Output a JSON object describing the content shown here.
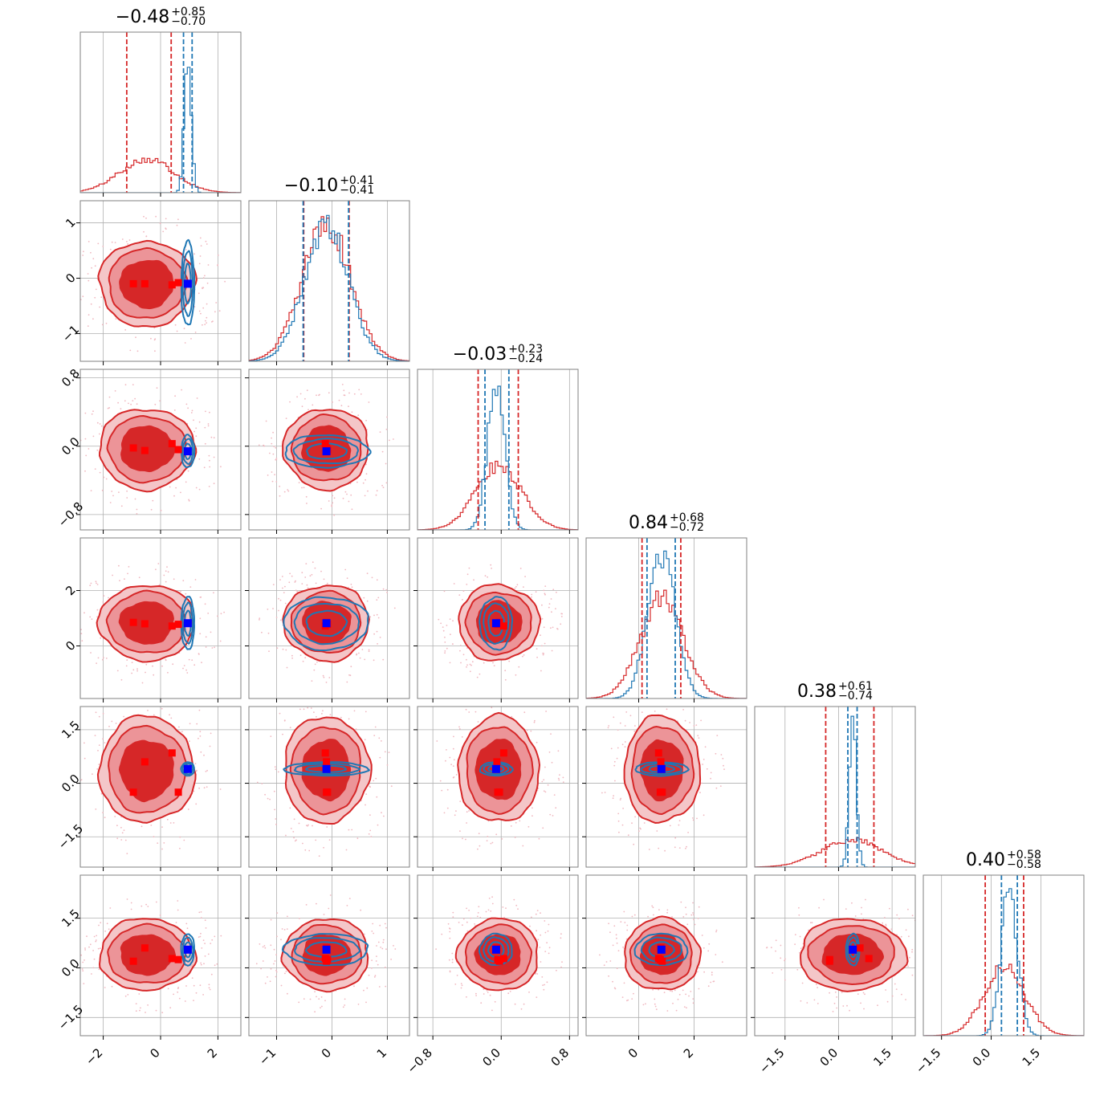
{
  "chart_data": {
    "type": "corner",
    "n_params": 6,
    "colors": {
      "red_series": "#d62728",
      "blue_series": "#1f77b4",
      "red_fill_inner": "#d62728",
      "red_fill_outer": "#ec9498",
      "truth_marker": "#0000ff",
      "grid": "#b0b0b0"
    },
    "grid": true,
    "titles": [
      {
        "median": "−0.48",
        "plus": "+0.85",
        "minus": "−0.70"
      },
      {
        "median": "−0.10",
        "plus": "+0.41",
        "minus": "−0.41"
      },
      {
        "median": "−0.03",
        "plus": "+0.23",
        "minus": "−0.24"
      },
      {
        "median": "0.84",
        "plus": "+0.68",
        "minus": "−0.72"
      },
      {
        "median": "0.38",
        "plus": "+0.61",
        "minus": "−0.74"
      },
      {
        "median": "0.40",
        "plus": "+0.58",
        "minus": "−0.58"
      }
    ],
    "ranges": [
      [
        -2.8,
        2.8
      ],
      [
        -1.5,
        1.4
      ],
      [
        -0.98,
        0.9
      ],
      [
        -1.9,
        3.9
      ],
      [
        -2.35,
        2.15
      ],
      [
        -2.05,
        2.8
      ]
    ],
    "ticks": [
      {
        "values": [
          -2,
          0,
          2
        ],
        "labels": [
          "−2",
          "0",
          "2"
        ]
      },
      {
        "values": [
          -1,
          0,
          1
        ],
        "labels": [
          "−1",
          "0",
          "1"
        ]
      },
      {
        "values": [
          -0.8,
          0.0,
          0.8
        ],
        "labels": [
          "−0.8",
          "0.0",
          "0.8"
        ]
      },
      {
        "values": [
          0,
          2
        ],
        "labels": [
          "0",
          "2"
        ]
      },
      {
        "values": [
          -1.5,
          0.0,
          1.5
        ],
        "labels": [
          "−1.5",
          "0.0",
          "1.5"
        ]
      },
      {
        "values": [
          -1.5,
          0.0,
          1.5
        ],
        "labels": [
          "−1.5",
          "0.0",
          "1.5"
        ]
      }
    ],
    "red_series": {
      "means": [
        -0.48,
        -0.1,
        -0.03,
        0.84,
        0.38,
        0.4
      ],
      "sigmas": [
        0.95,
        0.44,
        0.27,
        0.78,
        0.85,
        0.62
      ],
      "quantiles": [
        [
          -1.18,
          0.37
        ],
        [
          -0.51,
          0.31
        ],
        [
          -0.27,
          0.2
        ],
        [
          0.12,
          1.52
        ],
        [
          -0.36,
          0.99
        ],
        [
          -0.18,
          0.98
        ]
      ]
    },
    "blue_series": {
      "means": [
        0.95,
        -0.1,
        -0.06,
        0.82,
        0.4,
        0.55
      ],
      "sigmas": [
        0.12,
        0.4,
        0.1,
        0.5,
        0.1,
        0.25
      ],
      "quantiles": [
        [
          0.8,
          1.1
        ],
        [
          -0.52,
          0.3
        ],
        [
          -0.19,
          0.09
        ],
        [
          0.3,
          1.32
        ],
        [
          0.26,
          0.52
        ],
        [
          0.31,
          0.79
        ]
      ]
    },
    "truth": [
      0.95,
      -0.1,
      -0.06,
      0.82,
      0.4,
      0.55
    ],
    "red_markers": [
      [
        -0.95,
        -0.1,
        -0.02,
        0.85,
        -0.25,
        0.2
      ],
      [
        -0.55,
        -0.1,
        -0.05,
        0.8,
        0.6,
        0.6
      ],
      [
        0.4,
        -0.12,
        0.03,
        0.72,
        0.85,
        0.28
      ],
      [
        0.62,
        -0.08,
        -0.04,
        0.78,
        -0.25,
        0.25
      ]
    ]
  }
}
